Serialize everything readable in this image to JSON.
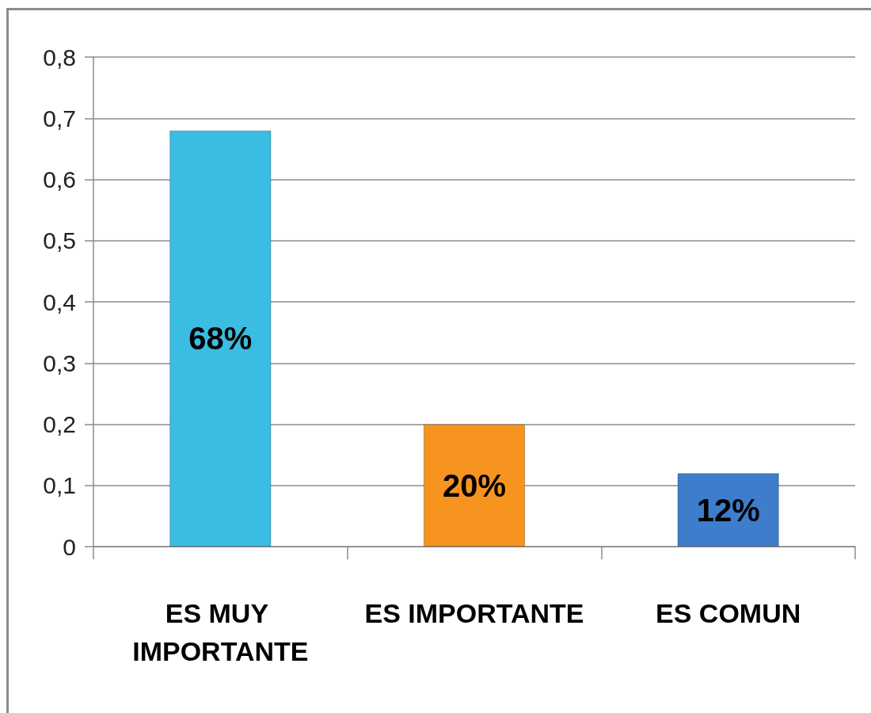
{
  "chart_data": {
    "type": "bar",
    "categories": [
      "ES MUY IMPORTANTE",
      "ES IMPORTANTE",
      "ES COMUN"
    ],
    "values": [
      0.68,
      0.2,
      0.12
    ],
    "colors": [
      "#3bbce2",
      "#f7931f",
      "#3e7dcb"
    ],
    "value_labels": [
      "68%",
      "20%",
      "12%"
    ],
    "ylim": [
      0,
      0.8
    ],
    "yticks": [
      0,
      {
        "value": 0.1,
        "label": "0,1"
      },
      {
        "value": 0.2,
        "label": "0,2"
      },
      {
        "value": 0.3,
        "label": "0,3"
      },
      {
        "value": 0.4,
        "label": "0,4"
      },
      {
        "value": 0.5,
        "label": "0,5"
      },
      {
        "value": 0.6,
        "label": "0,6"
      },
      {
        "value": 0.7,
        "label": "0,7"
      },
      {
        "value": 0.8,
        "label": "0,8"
      }
    ],
    "grid": "y"
  }
}
